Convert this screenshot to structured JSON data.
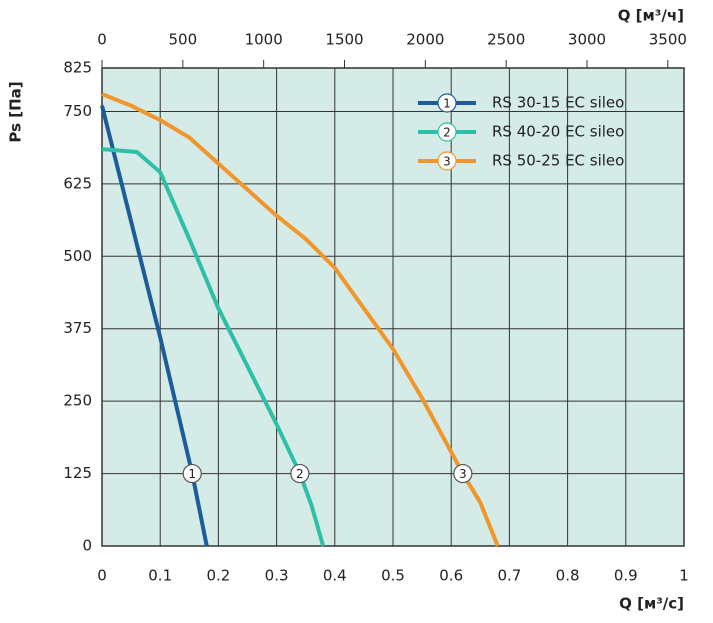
{
  "chart_data": {
    "type": "line",
    "xlabel": "Q [м³/с]",
    "x2label": "Q [м³/ч]",
    "ylabel": "Ps [Па]",
    "xlim": [
      0,
      1
    ],
    "xticks": [
      0,
      0.1,
      0.2,
      0.3,
      0.4,
      0.5,
      0.6,
      0.7,
      0.8,
      0.9,
      1
    ],
    "x2lim": [
      0,
      3600
    ],
    "x2ticks": [
      0,
      500,
      1000,
      1500,
      2000,
      2500,
      3000,
      3500
    ],
    "ylim": [
      0,
      825
    ],
    "yticks": [
      0,
      125,
      250,
      375,
      500,
      625,
      750,
      825
    ],
    "grid": true,
    "legend": "upper right",
    "background": "#d4ebe8",
    "series": [
      {
        "name": "RS 30-15 EC sileo",
        "marker_label": "1",
        "color": "#1d5c9b",
        "x": [
          0,
          0.05,
          0.1,
          0.155,
          0.18
        ],
        "values": [
          760,
          560,
          360,
          125,
          0
        ]
      },
      {
        "name": "RS 40-20 EC sileo",
        "marker_label": "2",
        "color": "#2dbfa8",
        "x": [
          0,
          0.06,
          0.1,
          0.15,
          0.2,
          0.25,
          0.3,
          0.34,
          0.36,
          0.38
        ],
        "values": [
          685,
          680,
          645,
          530,
          410,
          310,
          210,
          125,
          70,
          0
        ]
      },
      {
        "name": "RS 50-25 EC sileo",
        "marker_label": "3",
        "color": "#f0962a",
        "x": [
          0,
          0.05,
          0.1,
          0.15,
          0.2,
          0.25,
          0.3,
          0.35,
          0.4,
          0.45,
          0.5,
          0.55,
          0.62,
          0.65,
          0.68
        ],
        "values": [
          780,
          760,
          735,
          705,
          660,
          615,
          570,
          530,
          480,
          410,
          340,
          255,
          125,
          75,
          0
        ]
      }
    ]
  }
}
